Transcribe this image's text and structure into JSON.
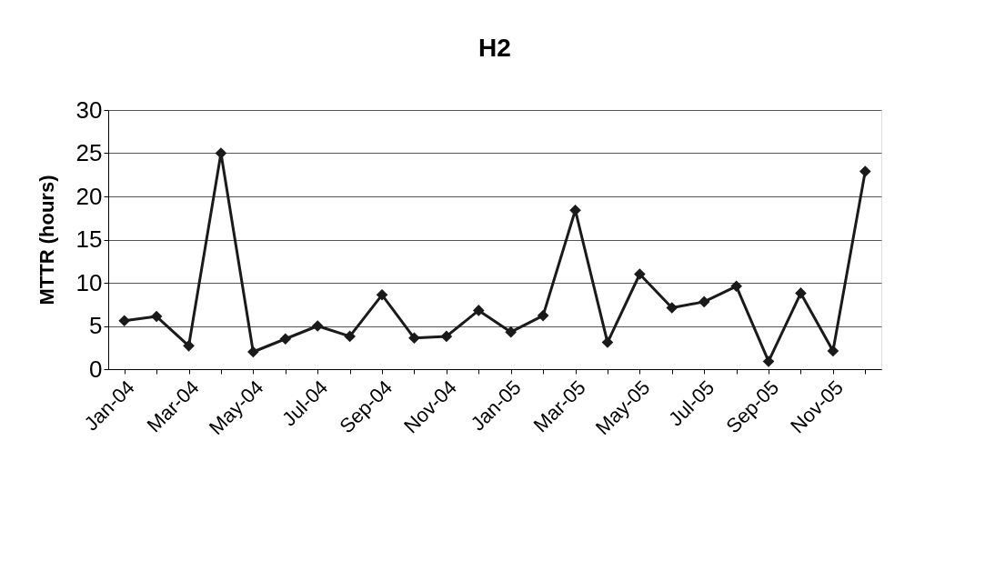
{
  "chart_data": {
    "type": "line",
    "title": "H2",
    "ylabel": "MTTR   (hours)",
    "categories": [
      "Jan-04",
      null,
      "Mar-04",
      null,
      "May-04",
      null,
      "Jul-04",
      null,
      "Sep-04",
      null,
      "Nov-04",
      null,
      "Jan-05",
      null,
      "Mar-05",
      null,
      "May-05",
      null,
      "Jul-05",
      null,
      "Sep-05",
      null,
      "Nov-05",
      null
    ],
    "series": [
      {
        "color": "#1a1a1a",
        "values": [
          5.6,
          6.1,
          2.7,
          25,
          2.0,
          3.5,
          5.0,
          3.8,
          8.6,
          3.6,
          3.8,
          6.8,
          4.3,
          6.2,
          18.4,
          3.1,
          11.0,
          7.1,
          7.8,
          9.6,
          0.9,
          8.8,
          2.1,
          22.9
        ]
      }
    ],
    "ylim": [
      0,
      30
    ],
    "yticks": [
      0,
      5,
      10,
      15,
      20,
      25,
      30
    ],
    "grid": "y",
    "marker": "diamond",
    "line_style": "solid"
  }
}
